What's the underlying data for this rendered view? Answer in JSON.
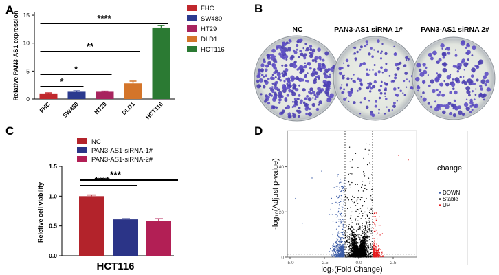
{
  "panels": {
    "A": "A",
    "B": "B",
    "C": "C",
    "D": "D"
  },
  "chart_data": [
    {
      "panel": "A",
      "type": "bar",
      "categories": [
        "FHC",
        "SW480",
        "HT29",
        "DLD1",
        "HCT116"
      ],
      "values": [
        1.0,
        1.3,
        1.3,
        2.8,
        12.8
      ],
      "errors": [
        0.1,
        0.15,
        0.1,
        0.4,
        0.35
      ],
      "colors": [
        "#c0282d",
        "#2b3a8f",
        "#a8245e",
        "#d4752a",
        "#2b7a33"
      ],
      "ylabel": "Relative PAN3-AS1 expression",
      "yticks": [
        "0",
        "5",
        "10",
        "15"
      ],
      "ylim": [
        0,
        15.5
      ],
      "legend": [
        "FHC",
        "SW480",
        "HT29",
        "DLD1",
        "HCT116"
      ],
      "legend_position": "right",
      "significance": [
        {
          "from": "FHC",
          "to": "SW480",
          "label": "*"
        },
        {
          "from": "FHC",
          "to": "HT29",
          "label": "*"
        },
        {
          "from": "FHC",
          "to": "DLD1",
          "label": "**"
        },
        {
          "from": "FHC",
          "to": "HCT116",
          "label": "****"
        }
      ]
    },
    {
      "panel": "C",
      "type": "bar",
      "categories": [
        "NC",
        "PAN3-AS1-siRNA-1#",
        "PAN3-AS1-siRNA-2#"
      ],
      "values": [
        1.0,
        0.61,
        0.58
      ],
      "errors": [
        0.02,
        0.01,
        0.04
      ],
      "colors": [
        "#b3232b",
        "#2b3487",
        "#b21f55"
      ],
      "ylabel": "Reletive cell viability",
      "xlabel": "HCT116",
      "yticks": [
        "0.0",
        "0.5",
        "1.0",
        "1.5"
      ],
      "ylim": [
        0,
        1.5
      ],
      "legend": [
        "NC",
        "PAN3-AS1-siRNA-1#",
        "PAN3-AS1-siRNA-2#"
      ],
      "legend_position": "top",
      "significance": [
        {
          "from": "NC",
          "to": "PAN3-AS1-siRNA-1#",
          "label": "****"
        },
        {
          "from": "NC",
          "to": "PAN3-AS1-siRNA-2#",
          "label": "***"
        }
      ]
    },
    {
      "panel": "D",
      "type": "scatter",
      "xlabel": "log₂(Fold Change)",
      "ylabel": "-log₁₀(Adjust p-value)",
      "xticks": [
        "-5.0",
        "-2.5",
        "0.0",
        "2.5"
      ],
      "yticks": [
        "0",
        "20",
        "40"
      ],
      "xlim": [
        -5.2,
        4.2
      ],
      "ylim": [
        0,
        56
      ],
      "thresholds_x": [
        -1,
        1
      ],
      "threshold_y": 1.3,
      "legend_title": "change",
      "legend": [
        {
          "name": "DOWN",
          "color": "#3a5ba6"
        },
        {
          "name": "Stable",
          "color": "#000000"
        },
        {
          "name": "UP",
          "color": "#e41a1c"
        }
      ]
    }
  ],
  "colony": {
    "labels": [
      "NC",
      "PAN3-AS1 siRNA 1#",
      "PAN3-AS1 siRNA 2#"
    ]
  }
}
